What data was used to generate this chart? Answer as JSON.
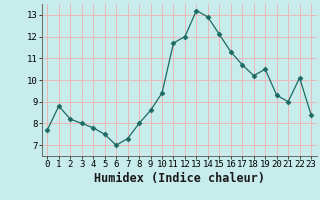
{
  "x": [
    0,
    1,
    2,
    3,
    4,
    5,
    6,
    7,
    8,
    9,
    10,
    11,
    12,
    13,
    14,
    15,
    16,
    17,
    18,
    19,
    20,
    21,
    22,
    23
  ],
  "y": [
    7.7,
    8.8,
    8.2,
    8.0,
    7.8,
    7.5,
    7.0,
    7.3,
    8.0,
    8.6,
    9.4,
    11.7,
    12.0,
    13.2,
    12.9,
    12.1,
    11.3,
    10.7,
    10.2,
    10.5,
    9.3,
    9.0,
    10.1,
    8.4
  ],
  "xlabel": "Humidex (Indice chaleur)",
  "xlim": [
    -0.5,
    23.5
  ],
  "ylim": [
    6.5,
    13.5
  ],
  "yticks": [
    7,
    8,
    9,
    10,
    11,
    12,
    13
  ],
  "xticks": [
    0,
    1,
    2,
    3,
    4,
    5,
    6,
    7,
    8,
    9,
    10,
    11,
    12,
    13,
    14,
    15,
    16,
    17,
    18,
    19,
    20,
    21,
    22,
    23
  ],
  "line_color": "#1c6b62",
  "marker": "D",
  "marker_size": 2.5,
  "bg_color": "#c8ecec",
  "grid_color": "#e8b8b8",
  "tick_label_fontsize": 6.5,
  "xlabel_fontsize": 8.5,
  "spine_color": "#555555"
}
